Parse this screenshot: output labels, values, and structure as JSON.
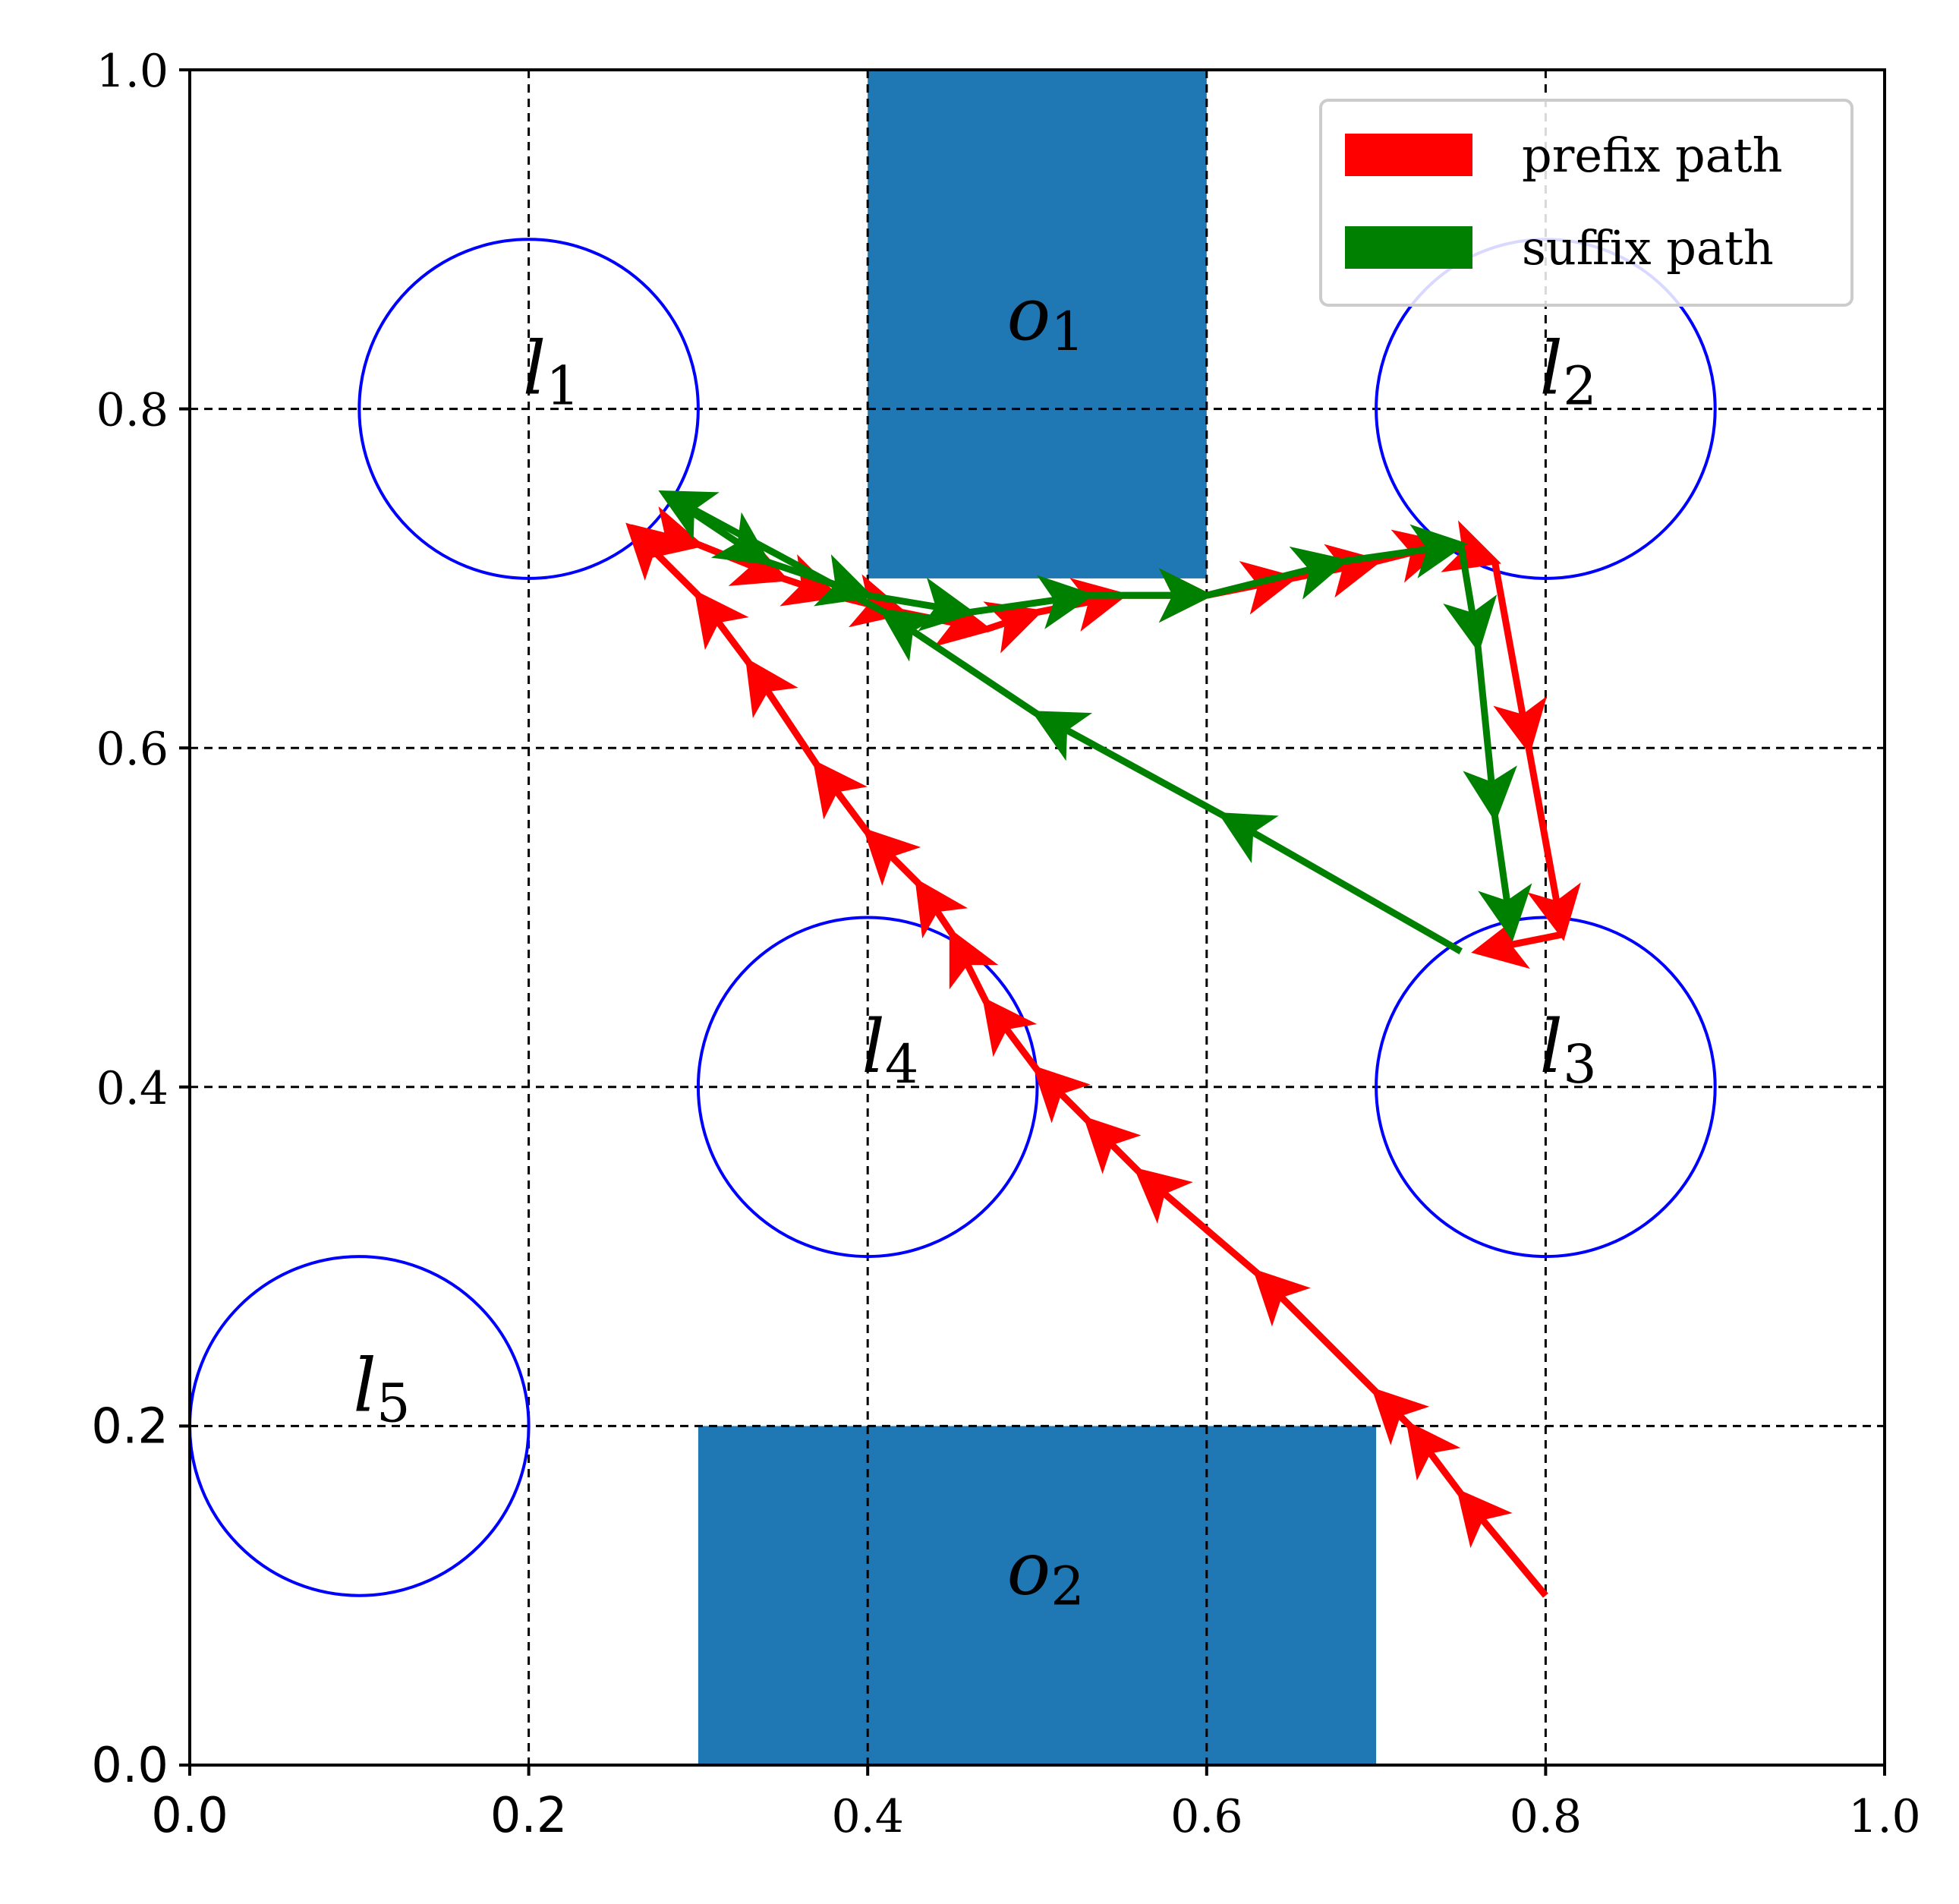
{
  "chart_data": {
    "type": "scatter",
    "xlim": [
      0.0,
      1.0
    ],
    "ylim": [
      0.0,
      1.0
    ],
    "grid": true,
    "grid_step": 0.2,
    "x_ticks": [
      {
        "value": 0.0,
        "label": "0.0",
        "style": "sans"
      },
      {
        "value": 0.2,
        "label": "0.2",
        "style": "sans"
      },
      {
        "value": 0.4,
        "label": "0.4",
        "style": "serif"
      },
      {
        "value": 0.6,
        "label": "0.6",
        "style": "serif"
      },
      {
        "value": 0.8,
        "label": "0.8",
        "style": "serif"
      },
      {
        "value": 1.0,
        "label": "1.0",
        "style": "serif"
      }
    ],
    "y_ticks": [
      {
        "value": 0.0,
        "label": "0.0",
        "style": "sans"
      },
      {
        "value": 0.2,
        "label": "0.2",
        "style": "sans"
      },
      {
        "value": 0.4,
        "label": "0.4",
        "style": "serif"
      },
      {
        "value": 0.6,
        "label": "0.6",
        "style": "serif"
      },
      {
        "value": 0.8,
        "label": "0.8",
        "style": "serif"
      },
      {
        "value": 1.0,
        "label": "1.0",
        "style": "serif"
      }
    ],
    "obstacles": [
      {
        "name": "o",
        "sub": "1",
        "x0": 0.4,
        "x1": 0.6,
        "y0": 0.7,
        "y1": 1.0,
        "label_x": 0.5,
        "label_y": 0.85,
        "color": "#1f77b4"
      },
      {
        "name": "o",
        "sub": "2",
        "x0": 0.3,
        "x1": 0.7,
        "y0": 0.0,
        "y1": 0.2,
        "label_x": 0.5,
        "label_y": 0.11,
        "color": "#1f77b4"
      }
    ],
    "regions": [
      {
        "name": "l",
        "sub": "1",
        "cx": 0.2,
        "cy": 0.8,
        "r": 0.1,
        "color": "#0000ff"
      },
      {
        "name": "l",
        "sub": "2",
        "cx": 0.8,
        "cy": 0.8,
        "r": 0.1,
        "color": "#0000ff"
      },
      {
        "name": "l",
        "sub": "3",
        "cx": 0.8,
        "cy": 0.4,
        "r": 0.1,
        "color": "#0000ff"
      },
      {
        "name": "l",
        "sub": "4",
        "cx": 0.4,
        "cy": 0.4,
        "r": 0.1,
        "color": "#0000ff"
      },
      {
        "name": "l",
        "sub": "5",
        "cx": 0.1,
        "cy": 0.2,
        "r": 0.1,
        "color": "#0000ff"
      }
    ],
    "legend": {
      "placement": "upper-right",
      "entries": [
        {
          "label": "prefix path",
          "color": "#ff0000"
        },
        {
          "label": "suffix path",
          "color": "#008000"
        }
      ]
    },
    "series": [
      {
        "name": "prefix path",
        "color": "#ff0000",
        "points": [
          [
            0.8,
            0.1
          ],
          [
            0.75,
            0.16
          ],
          [
            0.72,
            0.2
          ],
          [
            0.7,
            0.22
          ],
          [
            0.63,
            0.29
          ],
          [
            0.56,
            0.35
          ],
          [
            0.53,
            0.38
          ],
          [
            0.5,
            0.41
          ],
          [
            0.47,
            0.45
          ],
          [
            0.45,
            0.49
          ],
          [
            0.43,
            0.52
          ],
          [
            0.4,
            0.55
          ],
          [
            0.37,
            0.59
          ],
          [
            0.33,
            0.65
          ],
          [
            0.3,
            0.69
          ],
          [
            0.26,
            0.73
          ],
          [
            0.3,
            0.72
          ],
          [
            0.35,
            0.7
          ],
          [
            0.38,
            0.69
          ],
          [
            0.42,
            0.68
          ],
          [
            0.47,
            0.67
          ],
          [
            0.5,
            0.68
          ],
          [
            0.55,
            0.69
          ],
          [
            0.6,
            0.69
          ],
          [
            0.65,
            0.7
          ],
          [
            0.7,
            0.71
          ],
          [
            0.74,
            0.72
          ],
          [
            0.77,
            0.71
          ],
          [
            0.79,
            0.6
          ],
          [
            0.81,
            0.49
          ],
          [
            0.76,
            0.48
          ]
        ]
      },
      {
        "name": "suffix path",
        "color": "#008000",
        "points": [
          [
            0.75,
            0.48
          ],
          [
            0.61,
            0.56
          ],
          [
            0.5,
            0.62
          ],
          [
            0.41,
            0.68
          ],
          [
            0.28,
            0.75
          ],
          [
            0.34,
            0.71
          ],
          [
            0.4,
            0.69
          ],
          [
            0.46,
            0.68
          ],
          [
            0.53,
            0.69
          ],
          [
            0.6,
            0.69
          ],
          [
            0.68,
            0.71
          ],
          [
            0.75,
            0.72
          ],
          [
            0.76,
            0.66
          ],
          [
            0.77,
            0.56
          ],
          [
            0.78,
            0.49
          ]
        ]
      }
    ]
  }
}
